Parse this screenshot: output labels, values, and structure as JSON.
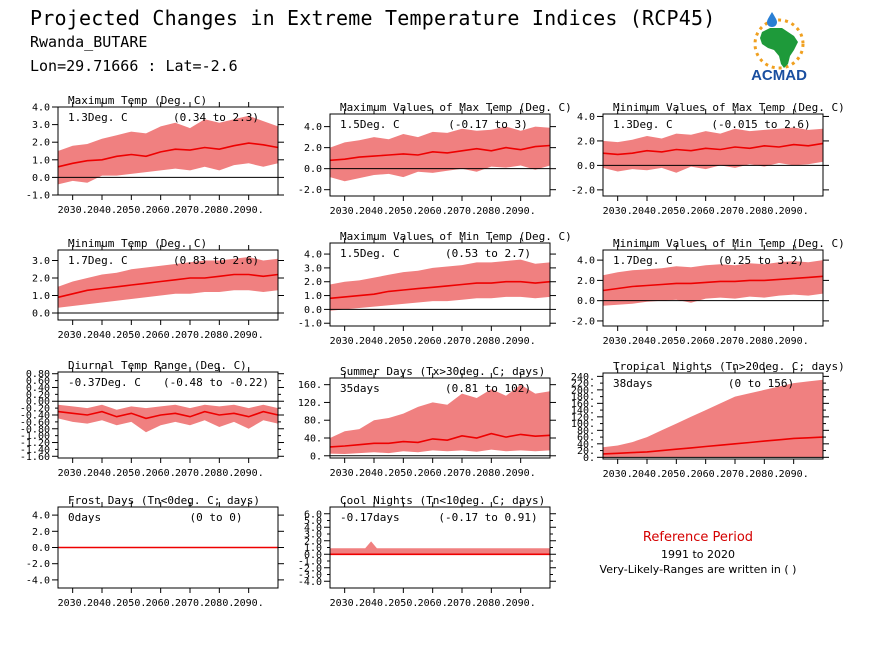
{
  "header": {
    "title": "Projected Changes in Extreme Temperature Indices (RCP45)",
    "location": "Rwanda_BUTARE",
    "coordinates": "Lon=29.71666 : Lat=-2.6"
  },
  "logo": {
    "text": "ACMAD",
    "icon": "acmad-africa-logo"
  },
  "reference": {
    "title": "Reference Period",
    "years": "1991 to 2020",
    "note": "Very-Likely-Ranges are written in ( )"
  },
  "colors": {
    "band": "#f08080",
    "line": "#ee0000",
    "frame": "#000000",
    "ref_title": "#d40000"
  },
  "chart_data": [
    {
      "type": "area",
      "title": "Maximum Temp (Deg. C)",
      "summary": "1.3Deg. C",
      "range": "(0.34 to 2.3)",
      "x_ticks": [
        "2030.",
        "2040.",
        "2050.",
        "2060.",
        "2070.",
        "2080.",
        "2090."
      ],
      "ylim": [
        -1.0,
        4.0
      ],
      "y_ticks": [
        "-1.0",
        "0.0",
        "1.0",
        "2.0",
        "3.0",
        "4.0"
      ],
      "y_tick_values": [
        -1,
        0,
        1,
        2,
        3,
        4
      ],
      "x": [
        2025,
        2030,
        2035,
        2040,
        2045,
        2050,
        2055,
        2060,
        2065,
        2070,
        2075,
        2080,
        2085,
        2090,
        2095,
        2100
      ],
      "median": [
        0.6,
        0.8,
        0.95,
        1.0,
        1.2,
        1.3,
        1.2,
        1.45,
        1.6,
        1.55,
        1.7,
        1.6,
        1.8,
        1.95,
        1.85,
        1.7
      ],
      "low": [
        -0.4,
        -0.2,
        -0.3,
        0.1,
        0.1,
        0.2,
        0.3,
        0.4,
        0.5,
        0.4,
        0.6,
        0.4,
        0.7,
        0.8,
        0.6,
        0.8
      ],
      "high": [
        1.5,
        1.8,
        1.9,
        2.2,
        2.4,
        2.6,
        2.5,
        2.9,
        3.1,
        2.8,
        3.3,
        3.1,
        3.3,
        3.5,
        3.2,
        2.9
      ]
    },
    {
      "type": "area",
      "title": "Maximum Values of Max Temp (Deg. C)",
      "summary": "1.5Deg. C",
      "range": "(-0.17 to 3)",
      "x_ticks": [
        "2030.",
        "2040.",
        "2050.",
        "2060.",
        "2070.",
        "2080.",
        "2090."
      ],
      "ylim": [
        -2.6,
        5.2
      ],
      "y_ticks": [
        "-2.0",
        "0.0",
        "2.0",
        "4.0"
      ],
      "y_tick_values": [
        -2,
        0,
        2,
        4
      ],
      "x": [
        2025,
        2030,
        2035,
        2040,
        2045,
        2050,
        2055,
        2060,
        2065,
        2070,
        2075,
        2080,
        2085,
        2090,
        2095,
        2100
      ],
      "median": [
        0.8,
        0.9,
        1.1,
        1.2,
        1.3,
        1.4,
        1.3,
        1.6,
        1.5,
        1.7,
        1.9,
        1.7,
        2.0,
        1.8,
        2.1,
        2.2
      ],
      "low": [
        -0.8,
        -1.2,
        -0.9,
        -0.6,
        -0.5,
        -0.8,
        -0.3,
        -0.4,
        -0.2,
        0.0,
        -0.3,
        0.2,
        0.1,
        0.3,
        -0.1,
        0.3
      ],
      "high": [
        2.0,
        2.5,
        2.7,
        3.0,
        2.8,
        3.3,
        3.0,
        3.5,
        3.4,
        3.8,
        3.6,
        3.7,
        4.0,
        3.6,
        4.0,
        3.9
      ]
    },
    {
      "type": "area",
      "title": "Minimum Values of Max Temp (Deg. C)",
      "summary": "1.3Deg. C",
      "range": "(-0.015 to 2.6)",
      "x_ticks": [
        "2030.",
        "2040.",
        "2050.",
        "2060.",
        "2070.",
        "2080.",
        "2090."
      ],
      "ylim": [
        -2.5,
        4.2
      ],
      "y_ticks": [
        "-2.0",
        "0.0",
        "2.0",
        "4.0"
      ],
      "y_tick_values": [
        -2,
        0,
        2,
        4
      ],
      "x": [
        2025,
        2030,
        2035,
        2040,
        2045,
        2050,
        2055,
        2060,
        2065,
        2070,
        2075,
        2080,
        2085,
        2090,
        2095,
        2100
      ],
      "median": [
        1.0,
        0.9,
        1.0,
        1.2,
        1.1,
        1.3,
        1.2,
        1.4,
        1.3,
        1.5,
        1.4,
        1.6,
        1.5,
        1.7,
        1.6,
        1.8
      ],
      "low": [
        -0.2,
        -0.5,
        -0.3,
        -0.4,
        -0.2,
        -0.6,
        -0.1,
        -0.3,
        0.0,
        -0.2,
        0.1,
        -0.1,
        0.2,
        0.0,
        0.1,
        0.3
      ],
      "high": [
        2.0,
        1.9,
        2.1,
        2.4,
        2.2,
        2.6,
        2.5,
        2.8,
        2.6,
        3.0,
        2.8,
        2.9,
        3.0,
        3.1,
        2.9,
        3.0
      ]
    },
    {
      "type": "area",
      "title": "Minimum Temp (Deg. C)",
      "summary": "1.7Deg. C",
      "range": "(0.83 to 2.6)",
      "x_ticks": [
        "2030.",
        "2040.",
        "2050.",
        "2060.",
        "2070.",
        "2080.",
        "2090."
      ],
      "ylim": [
        -0.4,
        3.6
      ],
      "y_ticks": [
        "0.0",
        "1.0",
        "2.0",
        "3.0"
      ],
      "y_tick_values": [
        0,
        1,
        2,
        3
      ],
      "x": [
        2025,
        2030,
        2035,
        2040,
        2045,
        2050,
        2055,
        2060,
        2065,
        2070,
        2075,
        2080,
        2085,
        2090,
        2095,
        2100
      ],
      "median": [
        0.9,
        1.1,
        1.3,
        1.4,
        1.5,
        1.6,
        1.7,
        1.8,
        1.9,
        2.0,
        2.0,
        2.1,
        2.2,
        2.2,
        2.1,
        2.2
      ],
      "low": [
        0.3,
        0.4,
        0.5,
        0.6,
        0.7,
        0.8,
        0.9,
        1.0,
        1.1,
        1.1,
        1.2,
        1.2,
        1.3,
        1.3,
        1.2,
        1.3
      ],
      "high": [
        1.5,
        1.8,
        2.0,
        2.2,
        2.3,
        2.5,
        2.6,
        2.7,
        2.8,
        2.9,
        3.0,
        3.0,
        3.1,
        3.2,
        3.0,
        3.1
      ]
    },
    {
      "type": "area",
      "title": "Maximum Values of Min Temp (Deg. C)",
      "summary": "1.5Deg. C",
      "range": "(0.53 to 2.7)",
      "x_ticks": [
        "2030.",
        "2040.",
        "2050.",
        "2060.",
        "2070.",
        "2080.",
        "2090."
      ],
      "ylim": [
        -1.2,
        4.8
      ],
      "y_ticks": [
        "-1.0",
        "0.0",
        "1.0",
        "2.0",
        "3.0",
        "4.0"
      ],
      "y_tick_values": [
        -1,
        0,
        1,
        2,
        3,
        4
      ],
      "x": [
        2025,
        2030,
        2035,
        2040,
        2045,
        2050,
        2055,
        2060,
        2065,
        2070,
        2075,
        2080,
        2085,
        2090,
        2095,
        2100
      ],
      "median": [
        0.8,
        0.9,
        1.0,
        1.1,
        1.3,
        1.4,
        1.5,
        1.6,
        1.7,
        1.8,
        1.9,
        1.9,
        2.0,
        2.0,
        1.9,
        2.0
      ],
      "low": [
        -0.1,
        0.0,
        0.1,
        0.2,
        0.3,
        0.4,
        0.5,
        0.6,
        0.6,
        0.7,
        0.8,
        0.8,
        0.9,
        0.9,
        0.8,
        0.9
      ],
      "high": [
        1.8,
        2.0,
        2.1,
        2.3,
        2.5,
        2.7,
        2.8,
        3.0,
        3.1,
        3.2,
        3.4,
        3.4,
        3.5,
        3.6,
        3.3,
        3.4
      ]
    },
    {
      "type": "area",
      "title": "Minimum Values of Min Temp (Deg. C)",
      "summary": "1.7Deg. C",
      "range": "(0.25 to 3.2)",
      "x_ticks": [
        "2030.",
        "2040.",
        "2050.",
        "2060.",
        "2070.",
        "2080.",
        "2090."
      ],
      "ylim": [
        -2.5,
        5.0
      ],
      "y_ticks": [
        "-2.0",
        "0.0",
        "2.0",
        "4.0"
      ],
      "y_tick_values": [
        -2,
        0,
        2,
        4
      ],
      "x": [
        2025,
        2030,
        2035,
        2040,
        2045,
        2050,
        2055,
        2060,
        2065,
        2070,
        2075,
        2080,
        2085,
        2090,
        2095,
        2100
      ],
      "median": [
        1.0,
        1.2,
        1.4,
        1.5,
        1.6,
        1.7,
        1.7,
        1.8,
        1.9,
        1.9,
        2.0,
        2.0,
        2.1,
        2.2,
        2.3,
        2.4
      ],
      "low": [
        -0.5,
        -0.4,
        -0.3,
        -0.1,
        0.0,
        0.1,
        -0.2,
        0.2,
        0.3,
        0.2,
        0.4,
        0.3,
        0.5,
        0.6,
        0.5,
        0.7
      ],
      "high": [
        2.5,
        2.8,
        3.0,
        3.1,
        3.2,
        3.4,
        3.3,
        3.5,
        3.6,
        3.5,
        3.7,
        3.6,
        3.8,
        3.9,
        3.8,
        4.0
      ]
    },
    {
      "type": "area",
      "title": "Diurnal Temp Range (Deg. C)",
      "summary": "-0.37Deg. C",
      "range": "(-0.48 to -0.22)",
      "x_ticks": [
        "2030.",
        "2040.",
        "2050.",
        "2060.",
        "2070.",
        "2080.",
        "2090."
      ],
      "ylim": [
        -1.65,
        0.85
      ],
      "y_ticks": [
        "-1.60",
        "-1.20",
        "-0.80",
        "-0.40",
        "0.00",
        "0.40",
        "0.80"
      ],
      "y_tick_values": [
        -1.6,
        -1.2,
        -0.8,
        -0.4,
        0.0,
        0.4,
        0.8
      ],
      "y_minor_ticks": [
        "-1.40",
        "-1.00",
        "-0.60",
        "-0.20",
        "0.20",
        "0.60"
      ],
      "y_minor_tick_values": [
        -1.4,
        -1.0,
        -0.6,
        -0.2,
        0.2,
        0.6
      ],
      "x": [
        2025,
        2030,
        2035,
        2040,
        2045,
        2050,
        2055,
        2060,
        2065,
        2070,
        2075,
        2080,
        2085,
        2090,
        2095,
        2100
      ],
      "median": [
        -0.3,
        -0.35,
        -0.4,
        -0.3,
        -0.45,
        -0.35,
        -0.5,
        -0.4,
        -0.35,
        -0.45,
        -0.3,
        -0.4,
        -0.35,
        -0.45,
        -0.3,
        -0.4
      ],
      "low": [
        -0.5,
        -0.6,
        -0.65,
        -0.55,
        -0.7,
        -0.6,
        -0.9,
        -0.7,
        -0.6,
        -0.7,
        -0.55,
        -0.75,
        -0.6,
        -0.8,
        -0.55,
        -0.65
      ],
      "high": [
        -0.1,
        -0.15,
        -0.2,
        -0.1,
        -0.25,
        -0.15,
        -0.2,
        -0.15,
        -0.1,
        -0.2,
        -0.1,
        -0.15,
        -0.1,
        -0.2,
        -0.1,
        -0.2
      ]
    },
    {
      "type": "area",
      "title": "Summer Days (Tx>30deg. C; days)",
      "summary": "35days",
      "range": "(0.81 to 102)",
      "x_ticks": [
        "2030.",
        "2040.",
        "2050.",
        "2060.",
        "2070.",
        "2080.",
        "2090."
      ],
      "ylim": [
        -5,
        175
      ],
      "y_ticks": [
        "0.",
        "40.",
        "80.",
        "120.",
        "160."
      ],
      "y_tick_values": [
        0,
        40,
        80,
        120,
        160
      ],
      "x": [
        2025,
        2030,
        2035,
        2040,
        2045,
        2050,
        2055,
        2060,
        2065,
        2070,
        2075,
        2080,
        2085,
        2090,
        2095,
        2100
      ],
      "median": [
        20,
        22,
        25,
        28,
        28,
        32,
        30,
        38,
        35,
        45,
        40,
        50,
        42,
        48,
        44,
        46
      ],
      "low": [
        5,
        4,
        6,
        8,
        6,
        10,
        8,
        12,
        10,
        12,
        9,
        14,
        10,
        12,
        10,
        12
      ],
      "high": [
        40,
        55,
        60,
        80,
        85,
        95,
        110,
        120,
        115,
        140,
        130,
        150,
        135,
        160,
        140,
        145
      ]
    },
    {
      "type": "area",
      "title": "Tropical Nights (Tn>20deg. C; days)",
      "summary": "38days",
      "range": "(0 to 156)",
      "x_ticks": [
        "2030.",
        "2040.",
        "2050.",
        "2060.",
        "2070.",
        "2080.",
        "2090."
      ],
      "ylim": [
        -5,
        250
      ],
      "y_ticks": [
        "0.",
        "40.",
        "80.",
        "120.",
        "160.",
        "200.",
        "240."
      ],
      "y_tick_values": [
        0,
        40,
        80,
        120,
        160,
        200,
        240
      ],
      "y_minor_ticks": [
        "20.",
        "60.",
        "100.",
        "140.",
        "180.",
        "220."
      ],
      "y_minor_tick_values": [
        20,
        60,
        100,
        140,
        180,
        220
      ],
      "x": [
        2025,
        2030,
        2035,
        2040,
        2045,
        2050,
        2055,
        2060,
        2065,
        2070,
        2075,
        2080,
        2085,
        2090,
        2095,
        2100
      ],
      "median": [
        10,
        12,
        14,
        16,
        20,
        24,
        28,
        32,
        36,
        40,
        44,
        48,
        52,
        56,
        58,
        60
      ],
      "low": [
        0,
        0,
        0,
        0,
        0,
        0,
        0,
        0,
        0,
        0,
        0,
        0,
        0,
        0,
        0,
        0
      ],
      "high": [
        30,
        35,
        45,
        60,
        80,
        100,
        120,
        140,
        160,
        180,
        190,
        200,
        210,
        220,
        225,
        230
      ]
    },
    {
      "type": "area",
      "title": "Frost Days (Tn<0deg. C; days)",
      "summary": "0days",
      "range": "(0 to 0)",
      "x_ticks": [
        "2030.",
        "2040.",
        "2050.",
        "2060.",
        "2070.",
        "2080.",
        "2090."
      ],
      "ylim": [
        -5.0,
        5.0
      ],
      "y_ticks": [
        "-4.0",
        "-2.0",
        "0.0",
        "2.0",
        "4.0"
      ],
      "y_tick_values": [
        -4,
        -2,
        0,
        2,
        4
      ],
      "x": [
        2025,
        2100
      ],
      "median": [
        0,
        0
      ],
      "low": [
        0,
        0
      ],
      "high": [
        0,
        0
      ]
    },
    {
      "type": "area",
      "title": "Cool Nights (Tn<10deg. C; days)",
      "summary": "-0.17days",
      "range": "(-0.17 to 0.91)",
      "x_ticks": [
        "2030.",
        "2040.",
        "2050.",
        "2060.",
        "2070.",
        "2080.",
        "2090."
      ],
      "ylim": [
        -5.0,
        7.0
      ],
      "y_ticks": [
        "-4.0",
        "-2.0",
        "0.0",
        "2.0",
        "4.0",
        "6.0"
      ],
      "y_tick_values": [
        -4,
        -2,
        0,
        2,
        4,
        6
      ],
      "y_minor_ticks": [
        "-3.0",
        "-1.0",
        "1.0",
        "3.0",
        "5.0"
      ],
      "y_minor_tick_values": [
        -3,
        -1,
        1,
        3,
        5
      ],
      "x": [
        2025,
        2037,
        2039,
        2041,
        2043,
        2100
      ],
      "median": [
        0,
        0,
        0,
        0,
        0,
        0
      ],
      "low": [
        0,
        0,
        0,
        0,
        0,
        0
      ],
      "high": [
        0.9,
        0.9,
        1.9,
        0.9,
        0.9,
        0.9
      ]
    }
  ]
}
